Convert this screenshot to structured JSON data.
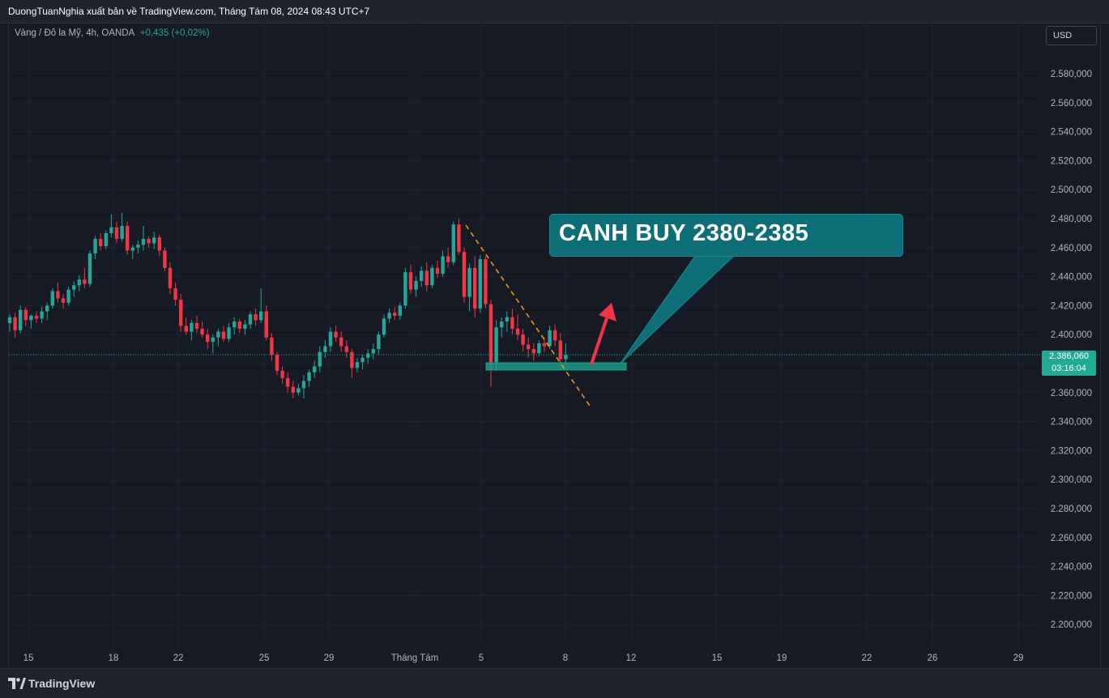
{
  "header": {
    "publisher_line": "DuongTuanNghia xuất bản về TradingView.com, Tháng Tám 08, 2024 08:43 UTC+7"
  },
  "legend": {
    "symbol": "Vàng / Đô la Mỹ, 4h, OANDA",
    "change": "+0,435 (+0,02%)"
  },
  "currency_button": {
    "label": "USD"
  },
  "price_axis": {
    "ticks": [
      "2.580,000",
      "2.560,000",
      "2.540,000",
      "2.520,000",
      "2.500,000",
      "2.480,000",
      "2.460,000",
      "2.440,000",
      "2.420,000",
      "2.400,000",
      "2.380,000",
      "2.360,000",
      "2.340,000",
      "2.320,000",
      "2.300,000",
      "2.280,000",
      "2.260,000",
      "2.240,000",
      "2.220,000",
      "2.200,000"
    ],
    "current_price": "2.386,060",
    "countdown": "03:16:04"
  },
  "time_axis": {
    "labels": [
      "15",
      "18",
      "22",
      "25",
      "29",
      "Tháng Tám",
      "5",
      "8",
      "12",
      "15",
      "19",
      "22",
      "26",
      "29"
    ]
  },
  "annotation": {
    "text": "CANH BUY 2380-2385"
  },
  "footer": {
    "brand": "TradingView"
  },
  "colors": {
    "up": "#26a69a",
    "down": "#f23645",
    "background": "#161a25",
    "annotation": "#0d6e78",
    "trendline": "#f7931a",
    "arrow": "#f23645",
    "zone": "#22ab94"
  },
  "chart_data": {
    "type": "candlestick",
    "symbol": "XAU/USD",
    "interval": "4h",
    "ylim": [
      2190,
      2590
    ],
    "y_tick_step": 20,
    "current_price": 2386.06,
    "candles": [
      [
        2408,
        2414,
        2402,
        2412
      ],
      [
        2412,
        2415,
        2398,
        2403
      ],
      [
        2403,
        2420,
        2401,
        2417
      ],
      [
        2417,
        2419,
        2406,
        2410
      ],
      [
        2410,
        2414,
        2404,
        2413
      ],
      [
        2413,
        2416,
        2408,
        2411
      ],
      [
        2411,
        2419,
        2408,
        2416
      ],
      [
        2416,
        2422,
        2410,
        2420
      ],
      [
        2420,
        2432,
        2418,
        2430
      ],
      [
        2430,
        2436,
        2422,
        2425
      ],
      [
        2425,
        2428,
        2418,
        2422
      ],
      [
        2422,
        2433,
        2420,
        2431
      ],
      [
        2431,
        2437,
        2426,
        2434
      ],
      [
        2434,
        2441,
        2430,
        2438
      ],
      [
        2438,
        2446,
        2432,
        2435
      ],
      [
        2435,
        2458,
        2433,
        2456
      ],
      [
        2456,
        2468,
        2452,
        2466
      ],
      [
        2466,
        2470,
        2458,
        2461
      ],
      [
        2461,
        2472,
        2459,
        2470
      ],
      [
        2470,
        2483,
        2467,
        2474
      ],
      [
        2474,
        2478,
        2463,
        2466
      ],
      [
        2466,
        2484,
        2464,
        2475
      ],
      [
        2475,
        2478,
        2455,
        2458
      ],
      [
        2458,
        2462,
        2452,
        2460
      ],
      [
        2460,
        2465,
        2456,
        2462
      ],
      [
        2462,
        2475,
        2458,
        2466
      ],
      [
        2466,
        2468,
        2460,
        2463
      ],
      [
        2463,
        2471,
        2459,
        2467
      ],
      [
        2467,
        2469,
        2454,
        2458
      ],
      [
        2458,
        2460,
        2444,
        2446
      ],
      [
        2446,
        2450,
        2428,
        2432
      ],
      [
        2432,
        2436,
        2420,
        2424
      ],
      [
        2424,
        2428,
        2402,
        2406
      ],
      [
        2406,
        2412,
        2400,
        2402
      ],
      [
        2402,
        2410,
        2396,
        2408
      ],
      [
        2408,
        2413,
        2401,
        2404
      ],
      [
        2404,
        2409,
        2398,
        2400
      ],
      [
        2400,
        2404,
        2390,
        2395
      ],
      [
        2395,
        2400,
        2387,
        2398
      ],
      [
        2398,
        2404,
        2392,
        2402
      ],
      [
        2402,
        2406,
        2395,
        2397
      ],
      [
        2397,
        2408,
        2395,
        2405
      ],
      [
        2405,
        2412,
        2400,
        2409
      ],
      [
        2409,
        2411,
        2401,
        2404
      ],
      [
        2404,
        2410,
        2400,
        2407
      ],
      [
        2407,
        2416,
        2404,
        2414
      ],
      [
        2414,
        2418,
        2406,
        2410
      ],
      [
        2410,
        2432,
        2408,
        2416
      ],
      [
        2416,
        2420,
        2396,
        2398
      ],
      [
        2398,
        2401,
        2382,
        2386
      ],
      [
        2386,
        2388,
        2372,
        2375
      ],
      [
        2375,
        2378,
        2366,
        2370
      ],
      [
        2370,
        2374,
        2360,
        2364
      ],
      [
        2364,
        2368,
        2356,
        2360
      ],
      [
        2360,
        2366,
        2358,
        2363
      ],
      [
        2363,
        2372,
        2356,
        2368
      ],
      [
        2368,
        2376,
        2364,
        2374
      ],
      [
        2374,
        2382,
        2370,
        2378
      ],
      [
        2378,
        2392,
        2374,
        2388
      ],
      [
        2388,
        2396,
        2384,
        2392
      ],
      [
        2392,
        2405,
        2388,
        2402
      ],
      [
        2402,
        2406,
        2395,
        2398
      ],
      [
        2398,
        2402,
        2388,
        2392
      ],
      [
        2392,
        2396,
        2384,
        2388
      ],
      [
        2388,
        2390,
        2370,
        2377
      ],
      [
        2377,
        2384,
        2374,
        2381
      ],
      [
        2381,
        2386,
        2376,
        2384
      ],
      [
        2384,
        2390,
        2380,
        2387
      ],
      [
        2387,
        2394,
        2383,
        2390
      ],
      [
        2390,
        2402,
        2386,
        2400
      ],
      [
        2400,
        2414,
        2398,
        2411
      ],
      [
        2411,
        2418,
        2408,
        2415
      ],
      [
        2415,
        2419,
        2410,
        2413
      ],
      [
        2413,
        2422,
        2410,
        2420
      ],
      [
        2420,
        2446,
        2418,
        2443
      ],
      [
        2443,
        2448,
        2428,
        2431
      ],
      [
        2431,
        2440,
        2426,
        2437
      ],
      [
        2437,
        2447,
        2433,
        2444
      ],
      [
        2444,
        2450,
        2430,
        2434
      ],
      [
        2434,
        2448,
        2432,
        2446
      ],
      [
        2446,
        2451,
        2439,
        2442
      ],
      [
        2442,
        2458,
        2440,
        2454
      ],
      [
        2454,
        2460,
        2446,
        2450
      ],
      [
        2450,
        2478,
        2448,
        2476
      ],
      [
        2476,
        2480,
        2455,
        2457
      ],
      [
        2457,
        2460,
        2422,
        2426
      ],
      [
        2426,
        2449,
        2416,
        2446
      ],
      [
        2446,
        2454,
        2412,
        2418
      ],
      [
        2418,
        2455,
        2415,
        2452
      ],
      [
        2452,
        2454,
        2418,
        2421
      ],
      [
        2421,
        2424,
        2364,
        2381
      ],
      [
        2381,
        2410,
        2375,
        2405
      ],
      [
        2405,
        2412,
        2398,
        2409
      ],
      [
        2409,
        2416,
        2402,
        2412
      ],
      [
        2412,
        2418,
        2400,
        2404
      ],
      [
        2404,
        2414,
        2396,
        2400
      ],
      [
        2400,
        2404,
        2388,
        2393
      ],
      [
        2393,
        2398,
        2384,
        2390
      ],
      [
        2390,
        2394,
        2382,
        2387
      ],
      [
        2387,
        2396,
        2385,
        2394
      ],
      [
        2394,
        2398,
        2388,
        2392
      ],
      [
        2392,
        2406,
        2390,
        2403
      ],
      [
        2403,
        2407,
        2392,
        2396
      ],
      [
        2396,
        2401,
        2380,
        2383
      ],
      [
        2383,
        2394,
        2381,
        2386
      ]
    ],
    "annotations": [
      {
        "type": "trendline",
        "color": "#f7931a",
        "style": "dashed",
        "from": [
          2478,
          "Aug 5"
        ],
        "to": [
          2350,
          "Aug 9"
        ]
      },
      {
        "type": "zone",
        "low": 2380,
        "high": 2385
      },
      {
        "type": "arrow",
        "direction": "up",
        "color": "#f23645"
      },
      {
        "type": "callout",
        "text": "CANH BUY 2380-2385"
      }
    ]
  }
}
